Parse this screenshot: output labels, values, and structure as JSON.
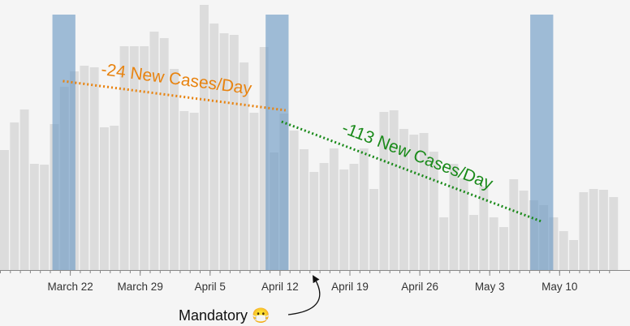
{
  "chart_data": {
    "type": "bar",
    "x_start": "2020-03-15",
    "values": [
      148,
      182,
      198,
      131,
      130,
      180,
      226,
      245,
      252,
      250,
      176,
      178,
      276,
      276,
      276,
      294,
      286,
      248,
      196,
      194,
      327,
      304,
      292,
      290,
      256,
      194,
      275,
      145,
      193,
      172,
      149,
      121,
      132,
      150,
      124,
      131,
      150,
      100,
      195,
      197,
      174,
      167,
      169,
      146,
      65,
      131,
      113,
      68,
      103,
      65,
      53,
      112,
      98,
      86,
      80,
      65,
      48,
      37,
      96,
      100,
      99,
      90
    ],
    "x_ticks": [
      {
        "index": 7,
        "label": "March 22"
      },
      {
        "index": 14,
        "label": "March 29"
      },
      {
        "index": 21,
        "label": "April 5"
      },
      {
        "index": 28,
        "label": "April 12"
      },
      {
        "index": 35,
        "label": "April 19"
      },
      {
        "index": 42,
        "label": "April 26"
      },
      {
        "index": 49,
        "label": "May 3"
      },
      {
        "index": 56,
        "label": "May 10"
      }
    ],
    "highlights": [
      {
        "start": 5.25,
        "end": 7.55
      },
      {
        "start": 26.6,
        "end": 28.9
      },
      {
        "start": 53.1,
        "end": 55.4
      }
    ],
    "trends": [
      {
        "label": "-24 New Cases/Day",
        "color": "#e8830f",
        "x0": 6.3,
        "y0": 233,
        "x1": 28.6,
        "y1": 197
      },
      {
        "label": "-113 New Cases/Day",
        "color": "#1a8a1a",
        "x0": 28.2,
        "y0": 183,
        "x1": 54.2,
        "y1": 60
      }
    ],
    "annotation": {
      "label": "Mandatory 😷",
      "index": 31
    }
  },
  "colors": {
    "bar": "#dcdcdc",
    "highlight": "#6e9bc5",
    "axis": "#888888",
    "background": "#f5f5f5"
  }
}
